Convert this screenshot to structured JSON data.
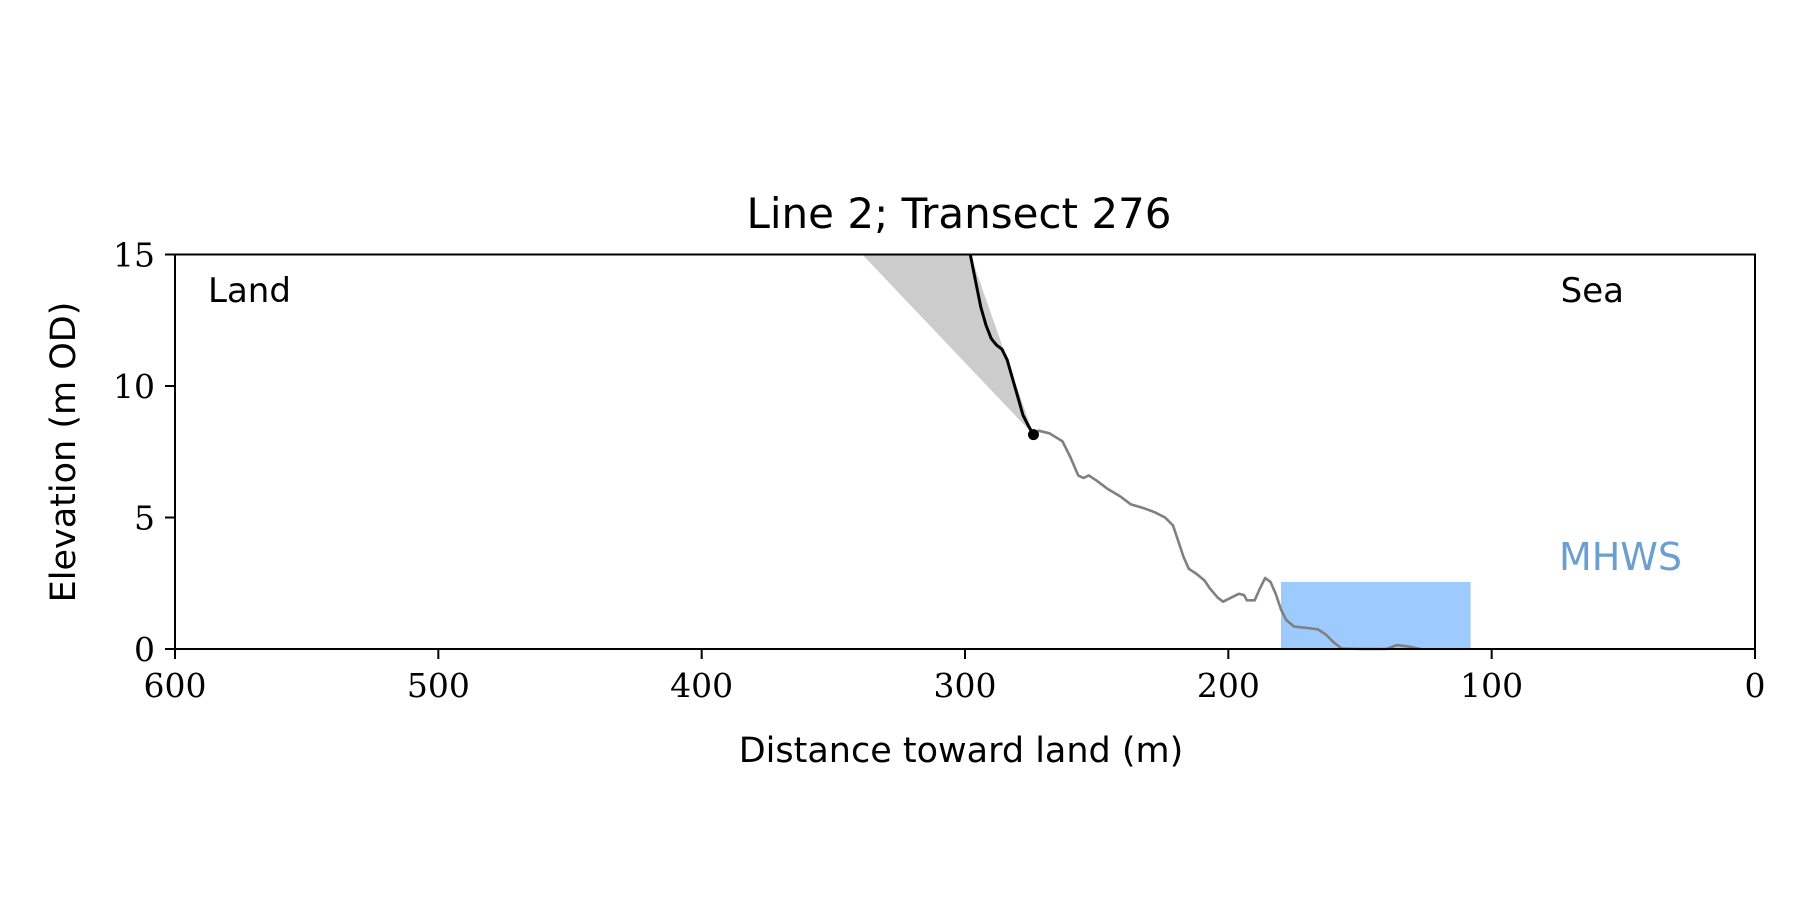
{
  "chart_data": {
    "type": "line",
    "title": "Line 2; Transect 276",
    "xlabel": "Distance toward land (m)",
    "ylabel": "Elevation (m OD)",
    "xlim": [
      600,
      0
    ],
    "ylim": [
      0,
      15
    ],
    "x_ticks": [
      600,
      500,
      400,
      300,
      200,
      100,
      0
    ],
    "y_ticks": [
      0,
      5,
      10,
      15
    ],
    "x_tick_labels": [
      "600",
      "500",
      "400",
      "300",
      "200",
      "100",
      "0"
    ],
    "y_tick_labels": [
      "0",
      "5",
      "10",
      "15"
    ],
    "grid": false,
    "legend": "none",
    "annotations": {
      "land": "Land",
      "sea": "Sea",
      "mhws": "MHWS"
    },
    "colors": {
      "cliff_line": "#000000",
      "profile_line": "#808080",
      "cliff_fill": "#cccccc",
      "mhws_fill": "#9dcbff",
      "mhws_label": "#6a9fd0"
    },
    "cliff_profile": [
      [
        298,
        15.0
      ],
      [
        296,
        14.0
      ],
      [
        294,
        13.0
      ],
      [
        292,
        12.3
      ],
      [
        290,
        11.8
      ],
      [
        288,
        11.55
      ],
      [
        286,
        11.4
      ],
      [
        284,
        11.0
      ],
      [
        282,
        10.3
      ],
      [
        280,
        9.6
      ],
      [
        278,
        8.9
      ],
      [
        276,
        8.5
      ],
      [
        274,
        8.15
      ]
    ],
    "cliff_toe": [
      274,
      8.15
    ],
    "cliff_fill_polygon": [
      [
        339,
        15.0
      ],
      [
        298,
        15.0
      ],
      [
        274,
        8.15
      ]
    ],
    "beach_profile": [
      [
        274,
        8.15
      ],
      [
        272,
        8.3
      ],
      [
        268,
        8.2
      ],
      [
        263,
        7.9
      ],
      [
        260,
        7.3
      ],
      [
        257,
        6.6
      ],
      [
        255,
        6.5
      ],
      [
        253,
        6.6
      ],
      [
        250,
        6.4
      ],
      [
        246,
        6.1
      ],
      [
        241,
        5.8
      ],
      [
        237,
        5.5
      ],
      [
        232,
        5.35
      ],
      [
        228,
        5.2
      ],
      [
        224,
        5.0
      ],
      [
        221,
        4.7
      ],
      [
        219,
        4.1
      ],
      [
        217,
        3.5
      ],
      [
        215,
        3.05
      ],
      [
        212,
        2.85
      ],
      [
        209,
        2.6
      ],
      [
        207,
        2.3
      ],
      [
        204,
        1.95
      ],
      [
        202,
        1.8
      ],
      [
        199,
        1.95
      ],
      [
        196,
        2.1
      ],
      [
        194,
        2.05
      ],
      [
        193,
        1.85
      ],
      [
        190,
        1.85
      ],
      [
        188,
        2.3
      ],
      [
        186,
        2.7
      ],
      [
        184,
        2.55
      ],
      [
        182,
        2.1
      ],
      [
        180,
        1.5
      ],
      [
        178,
        1.1
      ],
      [
        175,
        0.85
      ],
      [
        170,
        0.8
      ],
      [
        166,
        0.75
      ],
      [
        163,
        0.55
      ],
      [
        160,
        0.25
      ],
      [
        157,
        0.02
      ],
      [
        150,
        0.0
      ],
      [
        140,
        0.0
      ],
      [
        136,
        0.15
      ],
      [
        132,
        0.1
      ],
      [
        127,
        0.0
      ]
    ],
    "mhws_band": {
      "x_from": 180,
      "x_to": 108,
      "y_from": 0,
      "y_to": 2.55
    }
  }
}
